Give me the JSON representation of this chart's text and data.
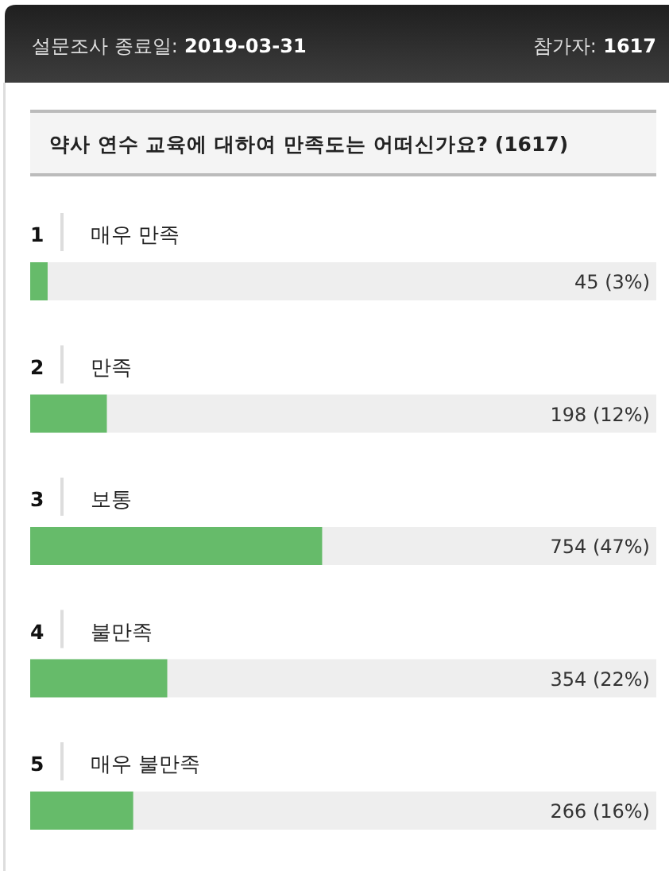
{
  "chart_data": {
    "type": "bar",
    "orientation": "horizontal",
    "subtitle": "설문조사 종료일: 2019-03-31",
    "title": "약사 연수 교육에 대하여 만족도는 어떠신가요? (1617)",
    "annotations": [
      "참가자: 1617",
      {
        "text": "1",
        "y": "매우 만족"
      },
      {
        "text": "2",
        "y": "만족"
      },
      {
        "text": "3",
        "y": "보통"
      },
      {
        "text": "4",
        "y": "불만족"
      },
      {
        "text": "5",
        "y": "매우 불만족"
      }
    ],
    "categories": [
      "매우 만족",
      "만족",
      "보통",
      "불만족",
      "매우 불만족"
    ],
    "values": [
      45,
      198,
      754,
      354,
      266
    ],
    "value_labels": [
      "45 (3%)",
      "198 (12%)",
      "754 (47%)",
      "354 (22%)",
      "266 (16%)"
    ],
    "color": "#66bb6a",
    "xlim": [
      0,
      1617
    ],
    "tick_labels": "y"
  }
}
